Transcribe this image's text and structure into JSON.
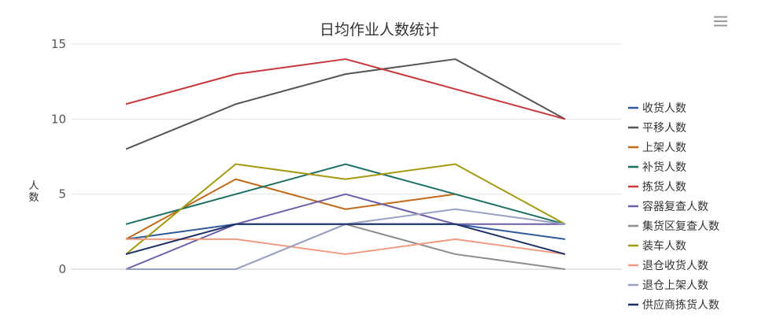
{
  "chart_data": {
    "type": "line",
    "title": "日均作业人数统计",
    "xlabel": "",
    "ylabel": "人数",
    "ylim": [
      0,
      15
    ],
    "yticks": [
      0,
      5,
      10,
      15
    ],
    "grid": true,
    "legend_position": "right",
    "x": [
      1,
      2,
      3,
      4,
      5
    ],
    "series": [
      {
        "name": "收货人数",
        "color": "#2f5b9a",
        "values": [
          2,
          3,
          3,
          3,
          2
        ]
      },
      {
        "name": "平移人数",
        "color": "#555555",
        "values": [
          8,
          11,
          13,
          14,
          10
        ]
      },
      {
        "name": "上架人数",
        "color": "#c06a1a",
        "values": [
          2,
          6,
          4,
          5,
          null
        ]
      },
      {
        "name": "补货人数",
        "color": "#1a6e62",
        "values": [
          3,
          5,
          7,
          5,
          3
        ]
      },
      {
        "name": "拣货人数",
        "color": "#c8373c",
        "values": [
          11,
          13,
          14,
          12,
          10
        ]
      },
      {
        "name": "容器复查人数",
        "color": "#6b5fa8",
        "values": [
          0,
          3,
          5,
          3,
          3
        ]
      },
      {
        "name": "集货区复查人数",
        "color": "#8c8c8c",
        "values": [
          0,
          0,
          3,
          1,
          0
        ]
      },
      {
        "name": "装车人数",
        "color": "#a39a12",
        "values": [
          1,
          7,
          6,
          7,
          3
        ]
      },
      {
        "name": "退仓收货人数",
        "color": "#f09a82",
        "values": [
          2,
          2,
          1,
          2,
          1
        ]
      },
      {
        "name": "退仓上架人数",
        "color": "#9a9fc4",
        "values": [
          0,
          0,
          3,
          4,
          3
        ]
      },
      {
        "name": "供应商拣货人数",
        "color": "#1c2f66",
        "values": [
          1,
          3,
          3,
          3,
          1
        ]
      }
    ]
  },
  "toolbar": {
    "menu_icon": "hamburger-menu-icon"
  }
}
